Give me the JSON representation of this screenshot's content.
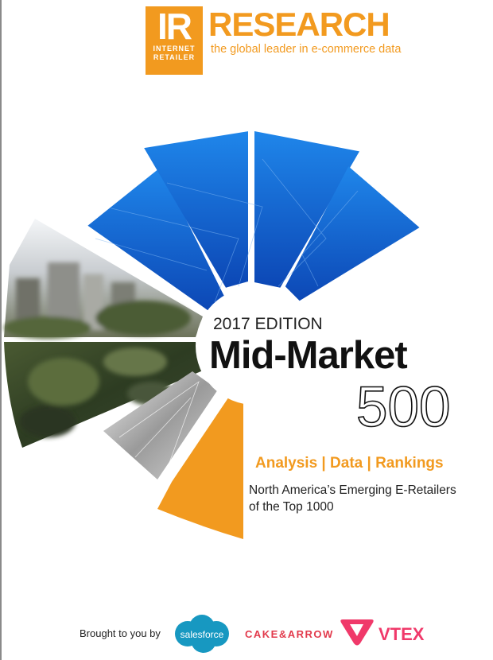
{
  "logo": {
    "ir_letters": "IR",
    "ir_line1": "INTERNET",
    "ir_line2": "RETAILER",
    "research": "RESEARCH",
    "tagline": "the global leader in e-commerce data"
  },
  "cover": {
    "edition": "2017 EDITION",
    "title": "Mid-Market",
    "number": "500",
    "subhead": "Analysis | Data | Rankings",
    "desc_line1": "North America’s Emerging E-Retailers",
    "desc_line2": "of the Top 1000"
  },
  "sponsors": {
    "brought": "Brought to you by",
    "salesforce": "salesforce",
    "cake": "CAKE&ARROW",
    "vtex": "VTEX"
  },
  "colors": {
    "accent": "#f29a1f",
    "blue": "#1f7be0",
    "vtex": "#f0396a",
    "cake": "#e23a4c",
    "salesforce": "#1798c1"
  }
}
